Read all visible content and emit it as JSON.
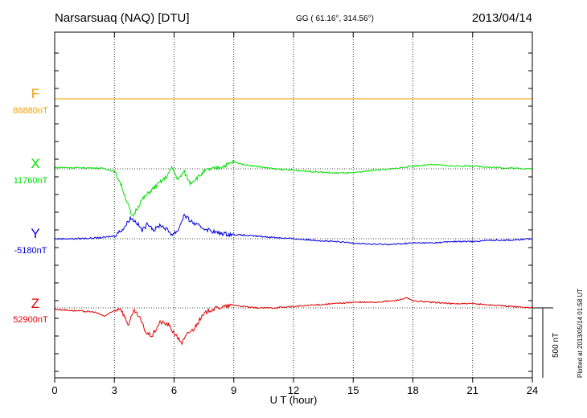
{
  "header": {
    "station": "Narsarsuaq (NAQ)  [DTU]",
    "coords": "GG ( 61.16°, 314.56°)",
    "date": "2013/04/14"
  },
  "plotted_note": "Plotted at 2013/05/14 01:58 UT",
  "scale_label": "500 nT",
  "chart_data": {
    "type": "line",
    "xlabel": "U T (hour)",
    "xlim": [
      0,
      24
    ],
    "xticks": [
      "0",
      "3",
      "6",
      "9",
      "12",
      "15",
      "18",
      "21",
      "24"
    ],
    "grid": true,
    "scale_bar_nT": 500,
    "series": [
      {
        "name": "F",
        "baseline_label": "88880nT",
        "color": "#f0a000",
        "x": [
          0,
          24
        ],
        "y": [
          0,
          0
        ]
      },
      {
        "name": "X",
        "baseline_label": "11760nT",
        "color": "#00e000",
        "x": [
          0,
          1,
          2,
          2.5,
          3,
          3.3,
          3.6,
          3.9,
          4.1,
          4.4,
          4.8,
          5.2,
          5.6,
          5.9,
          6.2,
          6.5,
          6.8,
          7.2,
          7.6,
          8,
          8.5,
          9,
          9.5,
          10,
          11,
          12,
          13,
          14,
          15,
          16,
          17,
          18,
          19,
          20,
          21,
          22,
          23,
          24
        ],
        "y": [
          10,
          8,
          6,
          2,
          -20,
          -100,
          -220,
          -350,
          -290,
          -220,
          -160,
          -110,
          -60,
          10,
          -80,
          -20,
          -100,
          -60,
          -10,
          0,
          20,
          50,
          30,
          20,
          0,
          -10,
          -20,
          -30,
          -30,
          -10,
          0,
          20,
          30,
          20,
          20,
          10,
          5,
          0
        ]
      },
      {
        "name": "Y",
        "baseline_label": "-5180nT",
        "color": "#0000e0",
        "x": [
          0,
          1,
          2,
          2.5,
          3,
          3.5,
          3.8,
          4.1,
          4.4,
          4.7,
          5,
          5.3,
          5.6,
          5.9,
          6.2,
          6.5,
          6.8,
          7.1,
          7.4,
          7.8,
          8.2,
          9,
          10,
          11,
          12,
          13,
          14,
          15,
          16,
          17,
          18,
          19,
          20,
          21,
          22,
          23,
          24
        ],
        "y": [
          0,
          0,
          5,
          10,
          20,
          80,
          150,
          120,
          60,
          110,
          60,
          100,
          70,
          30,
          60,
          170,
          130,
          100,
          80,
          60,
          40,
          30,
          20,
          10,
          0,
          -10,
          -20,
          -30,
          -40,
          -40,
          -30,
          -30,
          -20,
          -20,
          -10,
          -10,
          0
        ]
      },
      {
        "name": "Z",
        "baseline_label": "52900nT",
        "color": "#e00000",
        "x": [
          0,
          1,
          2,
          2.5,
          3,
          3.3,
          3.7,
          4,
          4.3,
          4.6,
          4.9,
          5.3,
          5.7,
          6.1,
          6.4,
          6.7,
          7,
          7.3,
          7.7,
          8.2,
          9,
          10,
          11,
          12,
          13,
          14,
          15,
          16,
          17,
          17.7,
          18,
          19,
          20,
          21,
          22,
          23,
          24
        ],
        "y": [
          -10,
          -20,
          -30,
          -60,
          -20,
          0,
          -120,
          -20,
          -80,
          -180,
          -200,
          -100,
          -120,
          -200,
          -250,
          -180,
          -150,
          -80,
          -20,
          0,
          20,
          0,
          0,
          10,
          20,
          30,
          40,
          40,
          50,
          70,
          50,
          40,
          30,
          30,
          20,
          10,
          0
        ]
      }
    ]
  }
}
